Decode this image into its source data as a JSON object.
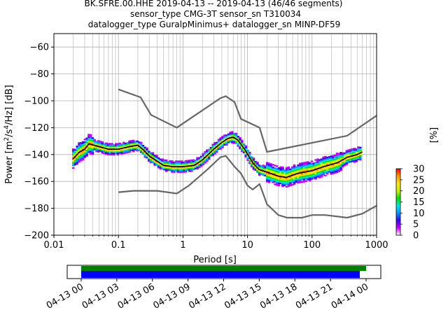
{
  "title_lines": [
    "BK.SFRE.00.HHE   2019-04-13 -- 2019-04-13  (46/46 segments)",
    "sensor_type CMG-3T sensor_sn T310034",
    "datalogger_type GuralpMinimus+ datalogger_sn MINP-DF59"
  ],
  "chart_data": {
    "type": "heatmap",
    "xlabel": "Period [s]",
    "ylabel_parts": [
      "Power [m",
      "2",
      "/s",
      "4",
      "/Hz] [dB]"
    ],
    "xscale": "log",
    "xlim": [
      0.01,
      1000
    ],
    "ylim": [
      -200,
      -50
    ],
    "grid": true,
    "x_ticks": [
      {
        "v": 0.01,
        "label": "0.01"
      },
      {
        "v": 0.1,
        "label": "0.1"
      },
      {
        "v": 1,
        "label": "1"
      },
      {
        "v": 10,
        "label": "10"
      },
      {
        "v": 100,
        "label": "100"
      },
      {
        "v": 1000,
        "label": "1000"
      }
    ],
    "y_ticks": [
      {
        "v": -60,
        "label": "−60"
      },
      {
        "v": -80,
        "label": "−80"
      },
      {
        "v": -100,
        "label": "−100"
      },
      {
        "v": -120,
        "label": "−120"
      },
      {
        "v": -140,
        "label": "−140"
      },
      {
        "v": -160,
        "label": "−160"
      },
      {
        "v": -180,
        "label": "−180"
      },
      {
        "v": -200,
        "label": "−200"
      }
    ],
    "nhnm": [
      [
        0.1,
        -168
      ],
      [
        0.17,
        -167
      ],
      [
        0.4,
        -167
      ],
      [
        0.8,
        -169
      ],
      [
        1.24,
        -163
      ],
      [
        2.4,
        -151
      ],
      [
        3.8,
        -142
      ],
      [
        4.6,
        -141
      ],
      [
        6.3,
        -149
      ],
      [
        7.9,
        -154
      ],
      [
        10,
        -163
      ],
      [
        12,
        -166
      ],
      [
        15.4,
        -162
      ],
      [
        20,
        -177
      ],
      [
        30,
        -185
      ],
      [
        41,
        -187
      ],
      [
        70,
        -187
      ],
      [
        100,
        -185
      ],
      [
        160,
        -185
      ],
      [
        350,
        -187
      ],
      [
        600,
        -184
      ],
      [
        1000,
        -178
      ]
    ],
    "nlnm": [
      [
        0.1,
        -91.5
      ],
      [
        0.22,
        -97.4
      ],
      [
        0.32,
        -110.5
      ],
      [
        0.8,
        -120
      ],
      [
        3.8,
        -98
      ],
      [
        4.6,
        -96.5
      ],
      [
        6.3,
        -101
      ],
      [
        7.9,
        -113.5
      ],
      [
        15.4,
        -120
      ],
      [
        20,
        -138
      ],
      [
        350,
        -126
      ],
      [
        1000,
        -111
      ]
    ],
    "mode": [
      [
        0.02,
        -143
      ],
      [
        0.025,
        -138
      ],
      [
        0.03,
        -136
      ],
      [
        0.035,
        -132
      ],
      [
        0.05,
        -134
      ],
      [
        0.07,
        -136
      ],
      [
        0.1,
        -136
      ],
      [
        0.15,
        -134
      ],
      [
        0.2,
        -133
      ],
      [
        0.25,
        -137
      ],
      [
        0.3,
        -141
      ],
      [
        0.4,
        -145
      ],
      [
        0.5,
        -148
      ],
      [
        0.7,
        -149
      ],
      [
        1,
        -149
      ],
      [
        1.5,
        -148
      ],
      [
        2,
        -144
      ],
      [
        3,
        -136
      ],
      [
        4,
        -131
      ],
      [
        5,
        -128
      ],
      [
        6,
        -127
      ],
      [
        7,
        -129
      ],
      [
        9,
        -136
      ],
      [
        12,
        -146
      ],
      [
        15,
        -151
      ],
      [
        20,
        -153
      ],
      [
        30,
        -156
      ],
      [
        40,
        -157
      ],
      [
        60,
        -154
      ],
      [
        100,
        -152
      ],
      [
        150,
        -149
      ],
      [
        250,
        -146
      ],
      [
        350,
        -142
      ],
      [
        500,
        -140
      ],
      [
        600,
        -138
      ]
    ],
    "colorbar": {
      "label": "[%]",
      "min": 0,
      "max": 30,
      "ticks": [
        {
          "v": 0,
          "label": "0"
        },
        {
          "v": 5,
          "label": "5"
        },
        {
          "v": 10,
          "label": "10"
        },
        {
          "v": 15,
          "label": "15"
        },
        {
          "v": 20,
          "label": "20"
        },
        {
          "v": 25,
          "label": "25"
        },
        {
          "v": 30,
          "label": "30"
        }
      ],
      "colors": [
        "#ffffff",
        "#c800ff",
        "#3c00ff",
        "#0096ff",
        "#00e6e6",
        "#00e600",
        "#c8f000",
        "#ffe600",
        "#ff9600",
        "#ff0000"
      ]
    },
    "timeline": {
      "tick_labels": [
        "04-13 00",
        "04-13 03",
        "04-13 06",
        "04-13 09",
        "04-13 12",
        "04-13 15",
        "04-13 18",
        "04-13 21",
        "04-14 00"
      ],
      "data_bar_color": "#008000",
      "psd_bar_color": "#0000ff"
    }
  },
  "colors": {
    "mode_line": "#000000",
    "noise_model": "#666666",
    "grid": "#b0b0b0"
  }
}
